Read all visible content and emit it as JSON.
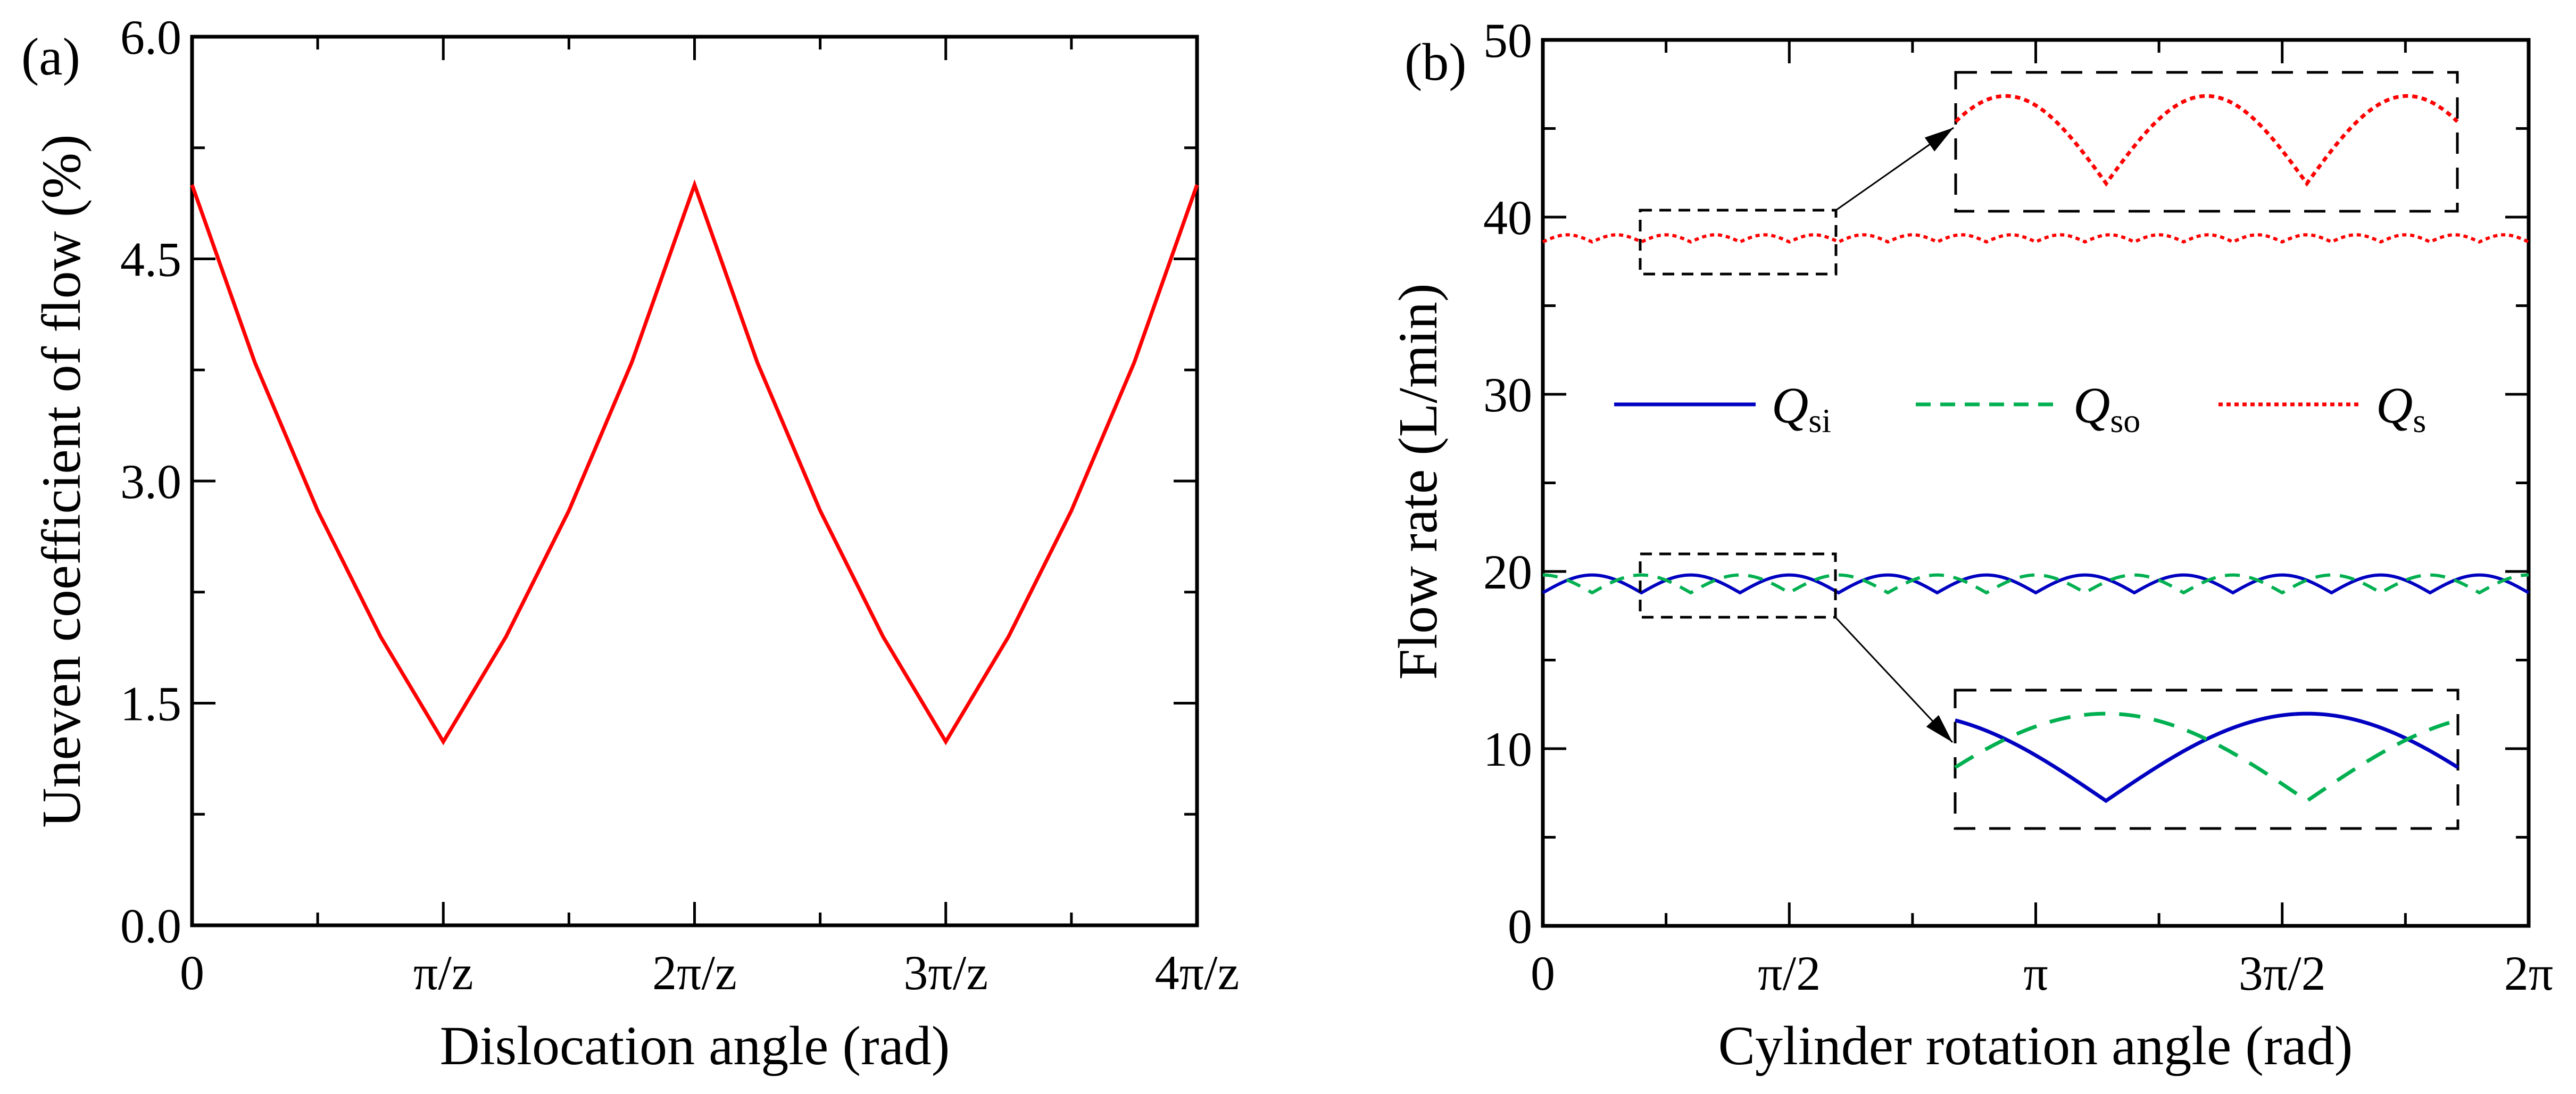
{
  "chart_data": [
    {
      "panel_label": "(a)",
      "type": "line",
      "title": "",
      "xlabel": "Dislocation angle (rad)",
      "ylabel": "Uneven coefficient of flow (%)",
      "xlim": [
        0,
        4
      ],
      "x_unit": "π/z",
      "ylim": [
        0,
        6
      ],
      "xticks": [
        {
          "value": 0,
          "label": "0"
        },
        {
          "value": 1,
          "label": "π/z"
        },
        {
          "value": 2,
          "label": "2π/z"
        },
        {
          "value": 3,
          "label": "3π/z"
        },
        {
          "value": 4,
          "label": "4π/z"
        }
      ],
      "xminor": [
        0.5,
        1.5,
        2.5,
        3.5
      ],
      "yticks": [
        {
          "value": 0,
          "label": "0.0"
        },
        {
          "value": 1.5,
          "label": "1.5"
        },
        {
          "value": 3,
          "label": "3.0"
        },
        {
          "value": 4.5,
          "label": "4.5"
        },
        {
          "value": 6,
          "label": "6.0"
        }
      ],
      "yminor": [
        0.75,
        2.25,
        3.75,
        5.25
      ],
      "grid": false,
      "series": [
        {
          "name": "Uneven coefficient",
          "color": "#ff0000",
          "style": "solid",
          "x": [
            0,
            0.25,
            0.5,
            0.75,
            1.0,
            1.25,
            1.5,
            1.75,
            2.0,
            2.25,
            2.5,
            2.75,
            3.0,
            3.25,
            3.5,
            3.75,
            4.0
          ],
          "y": [
            5.0,
            3.8,
            2.8,
            1.95,
            1.24,
            1.95,
            2.8,
            3.8,
            5.0,
            3.8,
            2.8,
            1.95,
            1.24,
            1.95,
            2.8,
            3.8,
            5.0
          ]
        }
      ]
    },
    {
      "panel_label": "(b)",
      "type": "line",
      "title": "",
      "xlabel": "Cylinder rotation angle (rad)",
      "ylabel": "Flow rate (L/min)",
      "xlim": [
        0,
        2
      ],
      "x_unit": "π",
      "ylim": [
        0,
        50
      ],
      "xticks": [
        {
          "value": 0,
          "label": "0"
        },
        {
          "value": 0.5,
          "label": "π/2"
        },
        {
          "value": 1,
          "label": "π"
        },
        {
          "value": 1.5,
          "label": "3π/2"
        },
        {
          "value": 2,
          "label": "2π"
        }
      ],
      "xminor": [
        0.25,
        0.75,
        1.25,
        1.75
      ],
      "yticks": [
        {
          "value": 0,
          "label": "0"
        },
        {
          "value": 10,
          "label": "10"
        },
        {
          "value": 20,
          "label": "20"
        },
        {
          "value": 30,
          "label": "30"
        },
        {
          "value": 40,
          "label": "40"
        },
        {
          "value": 50,
          "label": "50"
        }
      ],
      "yminor": [
        5,
        15,
        25,
        35,
        45
      ],
      "grid": false,
      "legend": {
        "placement": "center",
        "entries": [
          {
            "symbol": "Q",
            "subscript": "si",
            "color": "#0000c0",
            "style": "solid"
          },
          {
            "symbol": "Q",
            "subscript": "so",
            "color": "#00b050",
            "style": "dashed"
          },
          {
            "symbol": "Q",
            "subscript": "s",
            "color": "#ff0000",
            "style": "dotted"
          }
        ]
      },
      "series": [
        {
          "name": "Qsi",
          "color": "#0000c0",
          "style": "solid",
          "mean_peak": 19.8,
          "mean_trough": 18.8,
          "arches_per_2pi": 10,
          "phase": 0
        },
        {
          "name": "Qso",
          "color": "#00b050",
          "style": "dashed",
          "mean_peak": 19.8,
          "mean_trough": 18.8,
          "arches_per_2pi": 10,
          "phase": 0.5
        },
        {
          "name": "Qs",
          "color": "#ff0000",
          "style": "dotted",
          "mean_peak": 39.0,
          "mean_trough": 38.6,
          "arches_per_2pi": 20,
          "phase": 0
        }
      ],
      "annotations": [
        {
          "type": "zoom-inset",
          "target_series": [
            "Qs"
          ],
          "source_x_range": [
            0.125,
            0.375
          ],
          "source_y_range": [
            37,
            40.4
          ],
          "arches_shown": 4
        },
        {
          "type": "zoom-inset",
          "target_series": [
            "Qsi",
            "Qso"
          ],
          "source_x_range": [
            0.125,
            0.375
          ],
          "source_y_range": [
            17.6,
            21.2
          ],
          "arches_shown": 2
        }
      ]
    }
  ]
}
